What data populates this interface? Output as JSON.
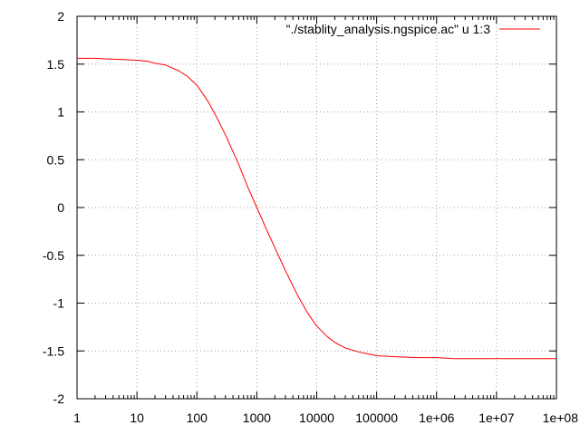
{
  "chart_data": {
    "type": "line",
    "title": "",
    "xlabel": "",
    "ylabel": "",
    "x_scale": "log",
    "xlim": [
      1,
      100000000
    ],
    "ylim": [
      -2,
      2
    ],
    "grid": true,
    "legend_position": "top-right",
    "x_ticks": [
      {
        "value": 1,
        "label": "1"
      },
      {
        "value": 10,
        "label": "10"
      },
      {
        "value": 100,
        "label": "100"
      },
      {
        "value": 1000,
        "label": "1000"
      },
      {
        "value": 10000,
        "label": "10000"
      },
      {
        "value": 100000,
        "label": "100000"
      },
      {
        "value": 1000000,
        "label": "1e+06"
      },
      {
        "value": 10000000,
        "label": "1e+07"
      },
      {
        "value": 100000000,
        "label": "1e+08"
      }
    ],
    "y_ticks": [
      {
        "value": 2,
        "label": "2"
      },
      {
        "value": 1.5,
        "label": "1.5"
      },
      {
        "value": 1,
        "label": "1"
      },
      {
        "value": 0.5,
        "label": "0.5"
      },
      {
        "value": 0,
        "label": "0"
      },
      {
        "value": -0.5,
        "label": "-0.5"
      },
      {
        "value": -1,
        "label": "-1"
      },
      {
        "value": -1.5,
        "label": "-1.5"
      },
      {
        "value": -2,
        "label": "-2"
      }
    ],
    "series": [
      {
        "name": "\"./stablity_analysis.ngspice.ac\" u 1:3",
        "color": "#ff0000",
        "points": [
          [
            1,
            1.56
          ],
          [
            2,
            1.56
          ],
          [
            3,
            1.555
          ],
          [
            5,
            1.55
          ],
          [
            10,
            1.54
          ],
          [
            15,
            1.53
          ],
          [
            20,
            1.51
          ],
          [
            30,
            1.49
          ],
          [
            50,
            1.43
          ],
          [
            70,
            1.37
          ],
          [
            100,
            1.28
          ],
          [
            150,
            1.12
          ],
          [
            200,
            0.98
          ],
          [
            300,
            0.76
          ],
          [
            500,
            0.45
          ],
          [
            700,
            0.22
          ],
          [
            1000,
            0.0
          ],
          [
            1500,
            -0.25
          ],
          [
            2000,
            -0.42
          ],
          [
            3000,
            -0.66
          ],
          [
            5000,
            -0.94
          ],
          [
            7000,
            -1.1
          ],
          [
            10000,
            -1.24
          ],
          [
            15000,
            -1.35
          ],
          [
            20000,
            -1.41
          ],
          [
            30000,
            -1.47
          ],
          [
            50000,
            -1.51
          ],
          [
            70000,
            -1.53
          ],
          [
            100000,
            -1.55
          ],
          [
            200000,
            -1.56
          ],
          [
            500000,
            -1.57
          ],
          [
            1000000,
            -1.57
          ],
          [
            2000000,
            -1.58
          ],
          [
            10000000,
            -1.58
          ],
          [
            100000000,
            -1.58
          ]
        ]
      }
    ]
  }
}
